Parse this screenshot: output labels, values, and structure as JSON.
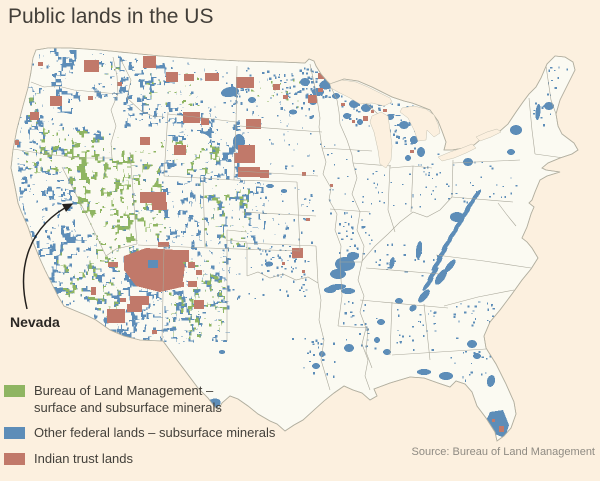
{
  "title": "Public lands in the US",
  "annotation": {
    "label": "Nevada"
  },
  "legend": {
    "items": [
      {
        "line1": "Bureau of Land Management –",
        "line2": "surface and subsurface minerals",
        "color": "#8fb562"
      },
      {
        "line1": "Other federal lands – subsurface minerals",
        "color": "#5d8db8"
      },
      {
        "line1": "Indian trust lands",
        "color": "#c1796a"
      }
    ]
  },
  "source": "Source: Bureau of Land Management",
  "colors": {
    "background": "#fcf0df",
    "land": "#fbfaf2",
    "state_border": "#a9a79a",
    "coast": "#b3b0a1",
    "blm_green": "#8fb562",
    "federal_blue": "#5d8db8",
    "indian_red": "#c1796a",
    "annotation": "#24211e"
  }
}
